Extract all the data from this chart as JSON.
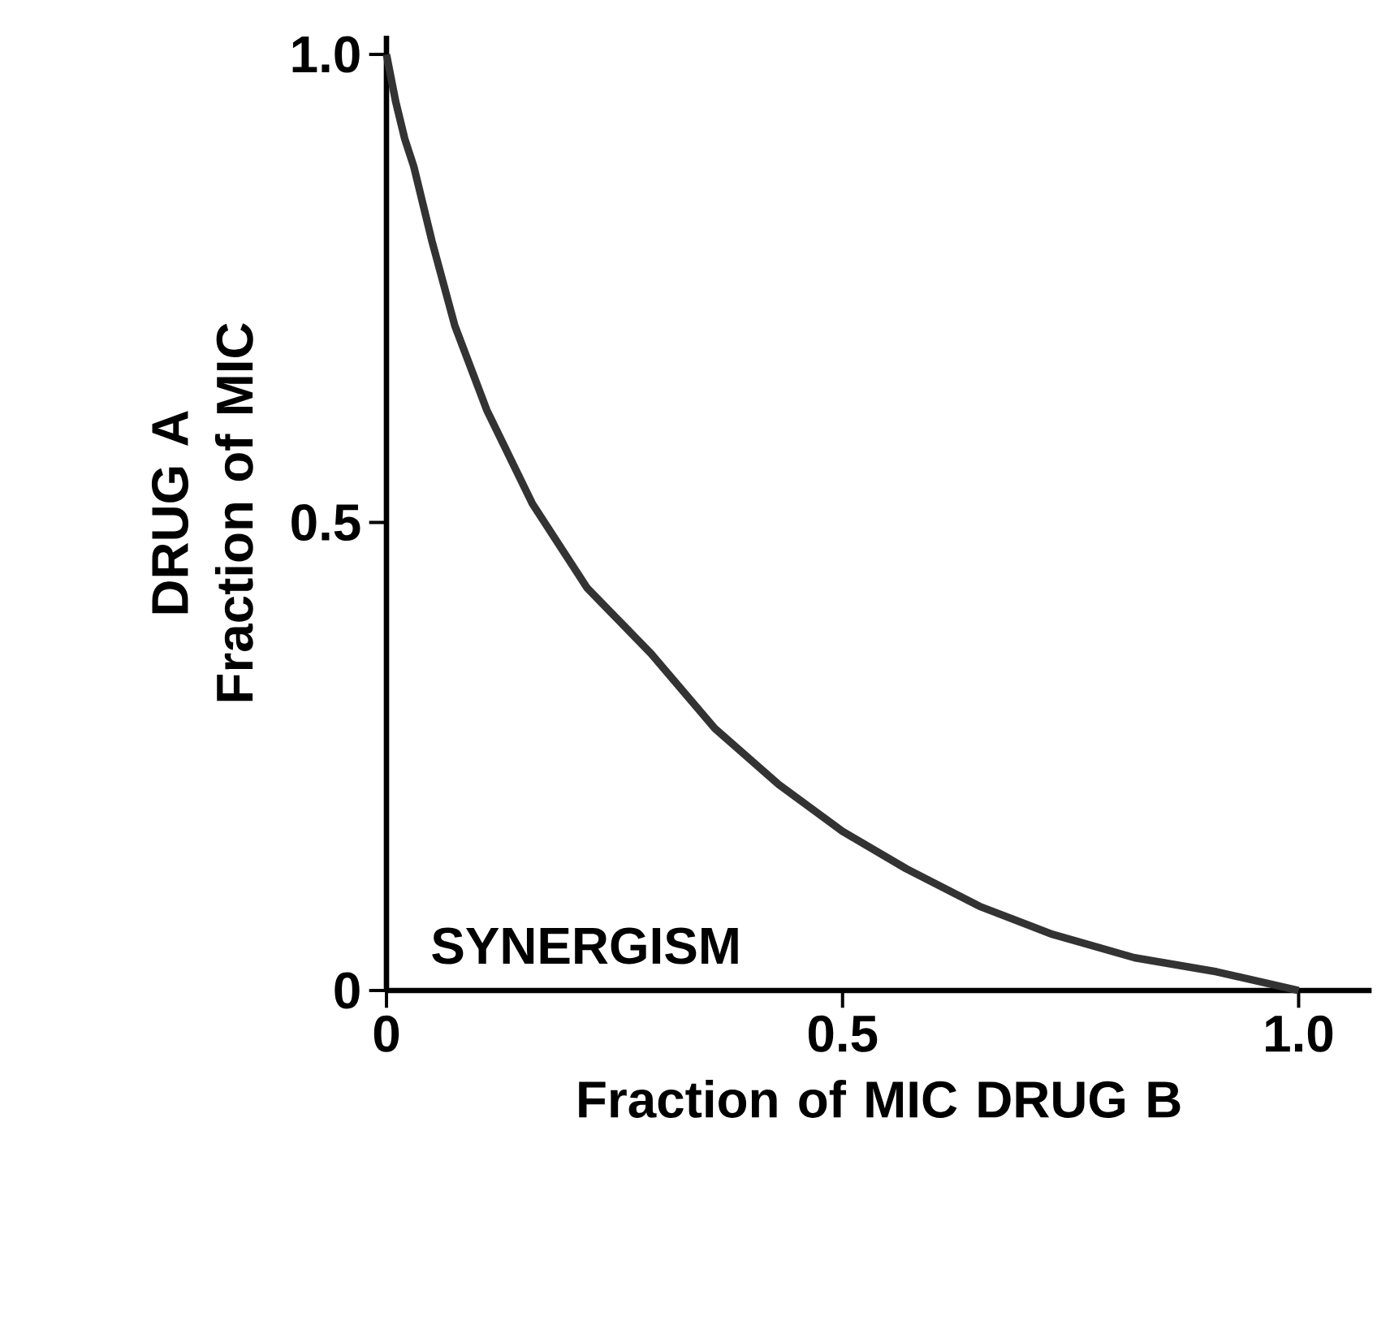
{
  "chart_data": {
    "type": "line",
    "xlabel": "Fraction of MIC DRUG B",
    "ylabel": "DRUG A Fraction of MIC",
    "annotations": [
      "SYNERGISM"
    ],
    "series": [
      {
        "color": "#333333",
        "x": [
          0,
          0.01,
          0.02,
          0.03,
          0.05,
          0.075,
          0.11,
          0.16,
          0.22,
          0.29,
          0.36,
          0.43,
          0.5,
          0.57,
          0.65,
          0.73,
          0.82,
          0.91,
          1.0
        ],
        "values": [
          1.0,
          0.95,
          0.91,
          0.88,
          0.8,
          0.71,
          0.62,
          0.52,
          0.43,
          0.36,
          0.28,
          0.22,
          0.17,
          0.13,
          0.09,
          0.06,
          0.035,
          0.02,
          0.0
        ]
      }
    ],
    "xlim": [
      0,
      1.08
    ],
    "ylim": [
      0,
      1.02
    ],
    "xticks": [
      0,
      0.5,
      {
        "value": 1,
        "label": "1.0"
      }
    ],
    "yticks": [
      0,
      0.5,
      {
        "value": 1,
        "label": "1.0"
      }
    ],
    "marker": "none",
    "line_style": "solid",
    "grid": false
  }
}
